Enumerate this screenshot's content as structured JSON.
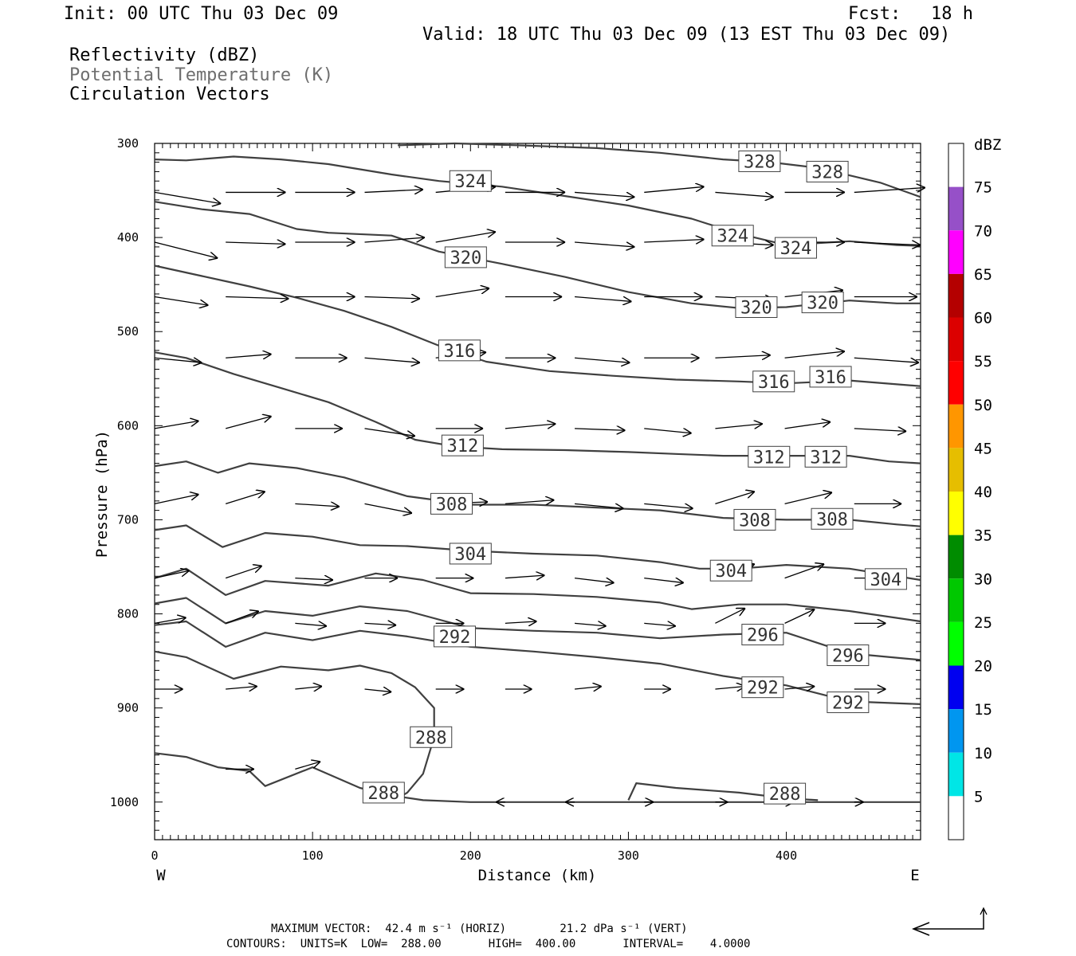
{
  "header": {
    "init": "Init: 00 UTC Thu 03 Dec 09",
    "fcst_label": "Fcst:",
    "fcst_value": "18 h",
    "valid": "Valid: 18 UTC Thu 03 Dec 09 (13 EST Thu 03 Dec 09)"
  },
  "legend": {
    "line1": "Reflectivity (dBZ)",
    "line2": "Potential Temperature (K)",
    "line3": "Circulation Vectors"
  },
  "footer": {
    "max_vector": "MAXIMUM VECTOR:  42.4 m s⁻¹ (HORIZ)        21.2 dPa s⁻¹ (VERT)",
    "contours": "CONTOURS:  UNITS=K  LOW=  288.00       HIGH=  400.00       INTERVAL=    4.0000"
  },
  "colors": {
    "contour": "#404040",
    "vector": "#000000",
    "frame": "#000000",
    "potential_temperature_legend": "#6e6e6e"
  },
  "chart_data": {
    "type": "line",
    "title": "",
    "xlabel": "Distance (km)",
    "ylabel": "Pressure (hPa)",
    "xlim": [
      0,
      485
    ],
    "ylim": [
      1040,
      300
    ],
    "x_ticks": [
      0,
      100,
      200,
      300,
      400
    ],
    "y_ticks": [
      300,
      400,
      500,
      600,
      700,
      800,
      900,
      1000
    ],
    "x_end_labels": {
      "left": "W",
      "right": "E"
    },
    "grid": false,
    "colorbar": {
      "title": "dBZ",
      "levels": [
        5,
        10,
        15,
        20,
        25,
        30,
        35,
        40,
        45,
        50,
        55,
        60,
        65,
        70,
        75
      ],
      "colors": [
        "#ffffff",
        "#00e6e6",
        "#0096f0",
        "#0000f0",
        "#00ff00",
        "#00c800",
        "#008c00",
        "#ffff00",
        "#e6be00",
        "#ff9600",
        "#ff0000",
        "#dc0000",
        "#b40000",
        "#ff00ff",
        "#9650c8",
        "#ffffff"
      ]
    },
    "contour_labels": [
      {
        "label": "328",
        "x": 383,
        "p": 319
      },
      {
        "label": "328",
        "x": 426,
        "p": 330
      },
      {
        "label": "324",
        "x": 200,
        "p": 340
      },
      {
        "label": "324",
        "x": 366,
        "p": 398
      },
      {
        "label": "324",
        "x": 406,
        "p": 411
      },
      {
        "label": "320",
        "x": 197,
        "p": 421
      },
      {
        "label": "320",
        "x": 381,
        "p": 474
      },
      {
        "label": "320",
        "x": 423,
        "p": 469
      },
      {
        "label": "316",
        "x": 193,
        "p": 520
      },
      {
        "label": "316",
        "x": 392,
        "p": 553
      },
      {
        "label": "316",
        "x": 428,
        "p": 548
      },
      {
        "label": "312",
        "x": 195,
        "p": 621
      },
      {
        "label": "312",
        "x": 389,
        "p": 633
      },
      {
        "label": "312",
        "x": 425,
        "p": 633
      },
      {
        "label": "308",
        "x": 188,
        "p": 683
      },
      {
        "label": "308",
        "x": 380,
        "p": 700
      },
      {
        "label": "308",
        "x": 429,
        "p": 699
      },
      {
        "label": "304",
        "x": 200,
        "p": 736
      },
      {
        "label": "304",
        "x": 365,
        "p": 754
      },
      {
        "label": "304",
        "x": 463,
        "p": 763
      },
      {
        "label": "296",
        "x": 385,
        "p": 822
      },
      {
        "label": "296",
        "x": 439,
        "p": 844
      },
      {
        "label": "292",
        "x": 190,
        "p": 824
      },
      {
        "label": "292",
        "x": 385,
        "p": 878
      },
      {
        "label": "292",
        "x": 439,
        "p": 894
      },
      {
        "label": "288",
        "x": 175,
        "p": 931
      },
      {
        "label": "288",
        "x": 145,
        "p": 990
      },
      {
        "label": "288",
        "x": 399,
        "p": 991
      }
    ],
    "isentropes": [
      {
        "theta": 328,
        "x": [
          154,
          190,
          230,
          280,
          320,
          360,
          390,
          420,
          460,
          485
        ],
        "p": [
          302,
          300,
          302,
          305,
          310,
          317,
          320,
          326,
          342,
          357
        ]
      },
      {
        "theta": 324,
        "x": [
          0,
          20,
          50,
          80,
          110,
          150,
          180,
          220,
          260,
          300,
          340,
          370,
          400,
          440,
          470,
          485
        ],
        "p": [
          317,
          318,
          314,
          317,
          322,
          333,
          340,
          346,
          356,
          366,
          380,
          396,
          408,
          404,
          408,
          409
        ]
      },
      {
        "theta": 320,
        "x": [
          0,
          30,
          60,
          90,
          110,
          150,
          180,
          220,
          260,
          300,
          340,
          370,
          400,
          440,
          470,
          485
        ],
        "p": [
          362,
          370,
          375,
          391,
          395,
          398,
          415,
          428,
          442,
          458,
          470,
          475,
          474,
          467,
          470,
          470
        ]
      },
      {
        "theta": 316,
        "x": [
          0,
          30,
          60,
          90,
          120,
          150,
          180,
          210,
          250,
          290,
          330,
          370,
          400,
          440,
          470,
          485
        ],
        "p": [
          430,
          441,
          452,
          464,
          478,
          495,
          515,
          532,
          542,
          547,
          551,
          553,
          555,
          552,
          556,
          558
        ]
      },
      {
        "theta": 312,
        "x": [
          0,
          20,
          50,
          80,
          110,
          140,
          165,
          190,
          220,
          260,
          300,
          330,
          360,
          400,
          440,
          465,
          485
        ],
        "p": [
          522,
          528,
          545,
          560,
          575,
          596,
          615,
          622,
          625,
          626,
          628,
          630,
          632,
          632,
          632,
          638,
          640
        ]
      },
      {
        "theta": 308,
        "x": [
          0,
          20,
          40,
          60,
          90,
          120,
          160,
          200,
          240,
          280,
          320,
          360,
          400,
          440,
          470,
          485
        ],
        "p": [
          643,
          638,
          650,
          640,
          645,
          655,
          675,
          684,
          684,
          687,
          690,
          698,
          700,
          700,
          705,
          707
        ]
      },
      {
        "theta": 304,
        "x": [
          0,
          20,
          43,
          70,
          100,
          130,
          160,
          200,
          240,
          280,
          320,
          345,
          370,
          400,
          440,
          485
        ],
        "p": [
          711,
          706,
          729,
          714,
          718,
          727,
          728,
          733,
          736,
          738,
          745,
          752,
          752,
          748,
          752,
          764
        ]
      },
      {
        "theta": 300,
        "x": [
          0,
          20,
          45,
          70,
          110,
          140,
          170,
          200,
          240,
          280,
          320,
          340,
          370,
          400,
          440,
          485
        ],
        "p": [
          762,
          752,
          780,
          765,
          770,
          757,
          764,
          778,
          779,
          782,
          788,
          795,
          790,
          790,
          797,
          808
        ]
      },
      {
        "theta": 296,
        "x": [
          0,
          20,
          45,
          70,
          100,
          130,
          160,
          200,
          240,
          280,
          320,
          360,
          400,
          440,
          485
        ],
        "p": [
          789,
          783,
          810,
          797,
          802,
          792,
          797,
          815,
          818,
          820,
          826,
          822,
          820,
          842,
          849
        ]
      },
      {
        "theta": 292,
        "x": [
          0,
          20,
          45,
          70,
          100,
          130,
          160,
          200,
          240,
          280,
          320,
          360,
          400,
          440,
          485
        ],
        "p": [
          812,
          808,
          835,
          820,
          828,
          818,
          824,
          835,
          840,
          846,
          853,
          866,
          876,
          893,
          896
        ]
      },
      {
        "theta": 288,
        "x": [
          0,
          20,
          50,
          80,
          110,
          130,
          150,
          165,
          177,
          177,
          170,
          160,
          155
        ],
        "p": [
          840,
          846,
          869,
          856,
          860,
          855,
          863,
          878,
          900,
          931,
          970,
          990,
          995
        ]
      },
      {
        "theta": 288,
        "x": [
          0,
          20,
          40,
          60,
          70,
          100,
          130,
          150,
          170,
          200,
          250,
          300,
          350,
          400,
          485
        ],
        "p": [
          948,
          952,
          963,
          967,
          983,
          963,
          985,
          993,
          998,
          1000,
          1000,
          1000,
          1000,
          1000,
          1000
        ]
      },
      {
        "theta": 288,
        "x": [
          300,
          305,
          330,
          370,
          400,
          420
        ],
        "p": [
          998,
          980,
          985,
          990,
          996,
          998
        ]
      }
    ],
    "vectors": {
      "u_scale_km_per_unit": 1,
      "rows": [
        {
          "p": 352,
          "x": [
            0,
            45,
            89,
            133,
            178,
            222,
            266,
            310,
            355,
            399,
            443
          ],
          "dx": [
            42,
            38,
            38,
            37,
            38,
            38,
            38,
            38,
            37,
            38,
            45
          ],
          "dp": [
            12,
            0,
            0,
            -3,
            -6,
            0,
            5,
            -6,
            5,
            0,
            -5
          ]
        },
        {
          "p": 405,
          "x": [
            0,
            45,
            89,
            133,
            178,
            222,
            266,
            310,
            355,
            399,
            443
          ],
          "dx": [
            40,
            38,
            38,
            38,
            38,
            38,
            38,
            38,
            37,
            38,
            42
          ],
          "dp": [
            17,
            2,
            0,
            -5,
            -11,
            0,
            5,
            -3,
            3,
            0,
            3
          ]
        },
        {
          "p": 463,
          "x": [
            0,
            45,
            89,
            133,
            178,
            222,
            266,
            310,
            355,
            399,
            443
          ],
          "dx": [
            34,
            40,
            38,
            35,
            34,
            36,
            36,
            37,
            37,
            37,
            40
          ],
          "dp": [
            9,
            2,
            0,
            2,
            -9,
            0,
            5,
            0,
            3,
            -7,
            0
          ]
        },
        {
          "p": 528,
          "x": [
            0,
            45,
            89,
            133,
            178,
            222,
            266,
            310,
            355,
            399,
            443
          ],
          "dx": [
            30,
            29,
            33,
            35,
            32,
            32,
            35,
            35,
            35,
            38,
            41
          ],
          "dp": [
            5,
            -4,
            0,
            5,
            -6,
            0,
            5,
            0,
            -3,
            -7,
            5
          ]
        },
        {
          "p": 603,
          "x": [
            0,
            45,
            89,
            133,
            178,
            222,
            266,
            310,
            355,
            399,
            443
          ],
          "dx": [
            28,
            29,
            30,
            32,
            30,
            32,
            32,
            30,
            30,
            29,
            33
          ],
          "dp": [
            -8,
            -13,
            0,
            8,
            0,
            -5,
            2,
            5,
            -5,
            -7,
            3
          ]
        },
        {
          "p": 683,
          "x": [
            0,
            45,
            89,
            133,
            178,
            222,
            266,
            310,
            355,
            399,
            443
          ],
          "dx": [
            28,
            25,
            28,
            30,
            33,
            31,
            31,
            31,
            25,
            30,
            30
          ],
          "dp": [
            -10,
            -13,
            3,
            10,
            -2,
            -4,
            5,
            5,
            -13,
            -12,
            0
          ]
        },
        {
          "p": 762,
          "x": [
            0,
            45,
            89,
            133,
            178,
            222,
            266,
            310,
            355,
            399,
            443
          ],
          "dx": [
            22,
            23,
            24,
            21,
            24,
            25,
            25,
            25,
            25,
            25,
            22
          ],
          "dp": [
            -8,
            -13,
            2,
            0,
            0,
            -3,
            5,
            5,
            -15,
            -15,
            0
          ]
        },
        {
          "p": 810,
          "x": [
            0,
            45,
            89,
            133,
            178,
            222,
            266,
            310,
            355,
            399,
            443
          ],
          "dx": [
            20,
            21,
            20,
            20,
            18,
            20,
            20,
            20,
            19,
            19,
            20
          ],
          "dp": [
            -6,
            -13,
            3,
            2,
            0,
            -2,
            3,
            3,
            -16,
            -15,
            0
          ]
        },
        {
          "p": 880,
          "x": [
            0,
            45,
            89,
            133,
            178,
            222,
            266,
            310,
            355,
            399,
            443
          ],
          "dx": [
            18,
            20,
            17,
            17,
            18,
            17,
            17,
            17,
            19,
            19,
            20
          ],
          "dp": [
            0,
            -3,
            -3,
            3,
            0,
            0,
            -3,
            0,
            -3,
            -3,
            0
          ]
        },
        {
          "p": 965,
          "x": [
            45,
            89
          ],
          "dx": [
            18,
            16
          ],
          "dp": [
            0,
            -8
          ]
        },
        {
          "p": 1000,
          "x": [
            222,
            266,
            310,
            355,
            399,
            443
          ],
          "dx": [
            -6,
            -6,
            6,
            8,
            6,
            6
          ],
          "dp": [
            0,
            0,
            0,
            0,
            0,
            0
          ]
        }
      ]
    },
    "reference_vector": {
      "horizontal_label": "42.4 m s⁻¹",
      "vertical_label": "21.2 dPa s⁻¹"
    }
  }
}
